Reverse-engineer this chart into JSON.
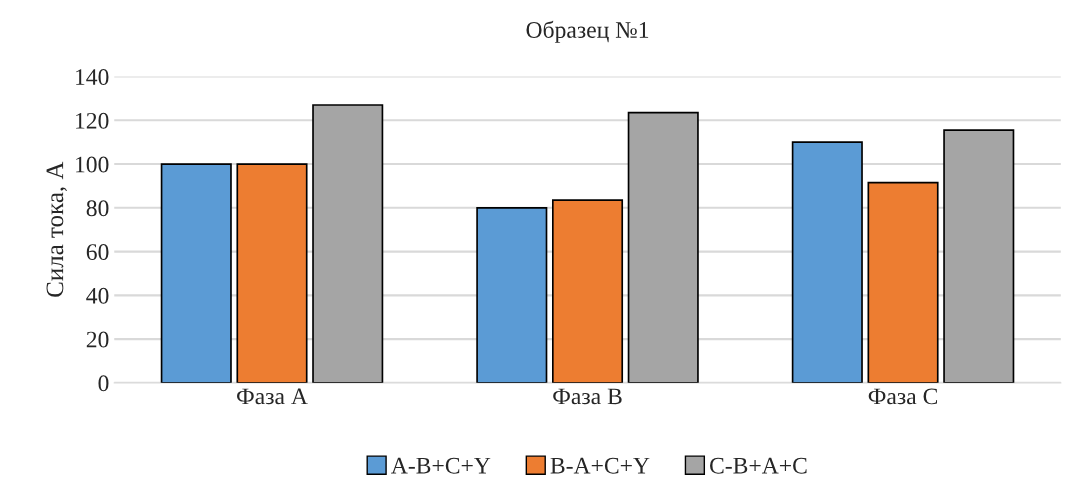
{
  "chart_data": {
    "type": "bar",
    "title": "Образец №1",
    "ylabel": "Сила тока, А",
    "categories": [
      "Фаза А",
      "Фаза В",
      "Фаза С"
    ],
    "series": [
      {
        "name": "A-B+C+Y",
        "color": "#5b9bd5",
        "values": [
          100,
          80,
          110
        ]
      },
      {
        "name": "B-A+C+Y",
        "color": "#ed7d31",
        "values": [
          100,
          83.5,
          91.5
        ]
      },
      {
        "name": "C-B+A+C",
        "color": "#a5a5a5",
        "values": [
          127,
          123.5,
          115.5
        ]
      }
    ],
    "ylim": [
      0,
      140
    ],
    "yticks": [
      0,
      20,
      40,
      60,
      80,
      100,
      120,
      140
    ],
    "grid": "y",
    "legend": "bottom"
  }
}
